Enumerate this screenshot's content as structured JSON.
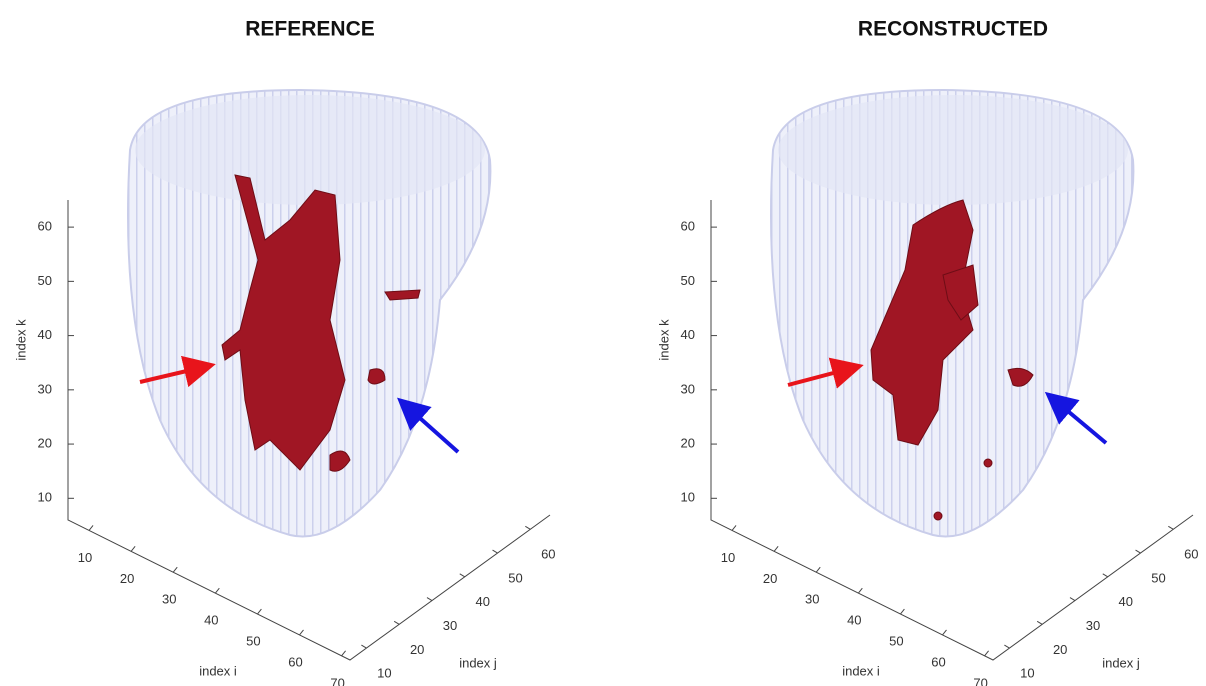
{
  "chart_data": [
    {
      "type": "isosurface3d",
      "title": "REFERENCE",
      "xlabel": "index i",
      "ylabel": "index j",
      "zlabel": "index k",
      "xlim": [
        5,
        72
      ],
      "ylim": [
        5,
        66
      ],
      "zlim": [
        6,
        65
      ],
      "xticks": [
        10,
        20,
        30,
        40,
        50,
        60,
        70
      ],
      "yticks": [
        10,
        20,
        30,
        40,
        50,
        60
      ],
      "zticks": [
        10,
        20,
        30,
        40,
        50,
        60
      ]
    },
    {
      "type": "isosurface3d",
      "title": "RECONSTRUCTED",
      "xlabel": "index i",
      "ylabel": "index j",
      "zlabel": "index k",
      "xlim": [
        5,
        72
      ],
      "ylim": [
        5,
        66
      ],
      "zlim": [
        6,
        65
      ],
      "xticks": [
        10,
        20,
        30,
        40,
        50,
        60,
        70
      ],
      "yticks": [
        10,
        20,
        30,
        40,
        50,
        60
      ],
      "zticks": [
        10,
        20,
        30,
        40,
        50,
        60
      ]
    }
  ]
}
